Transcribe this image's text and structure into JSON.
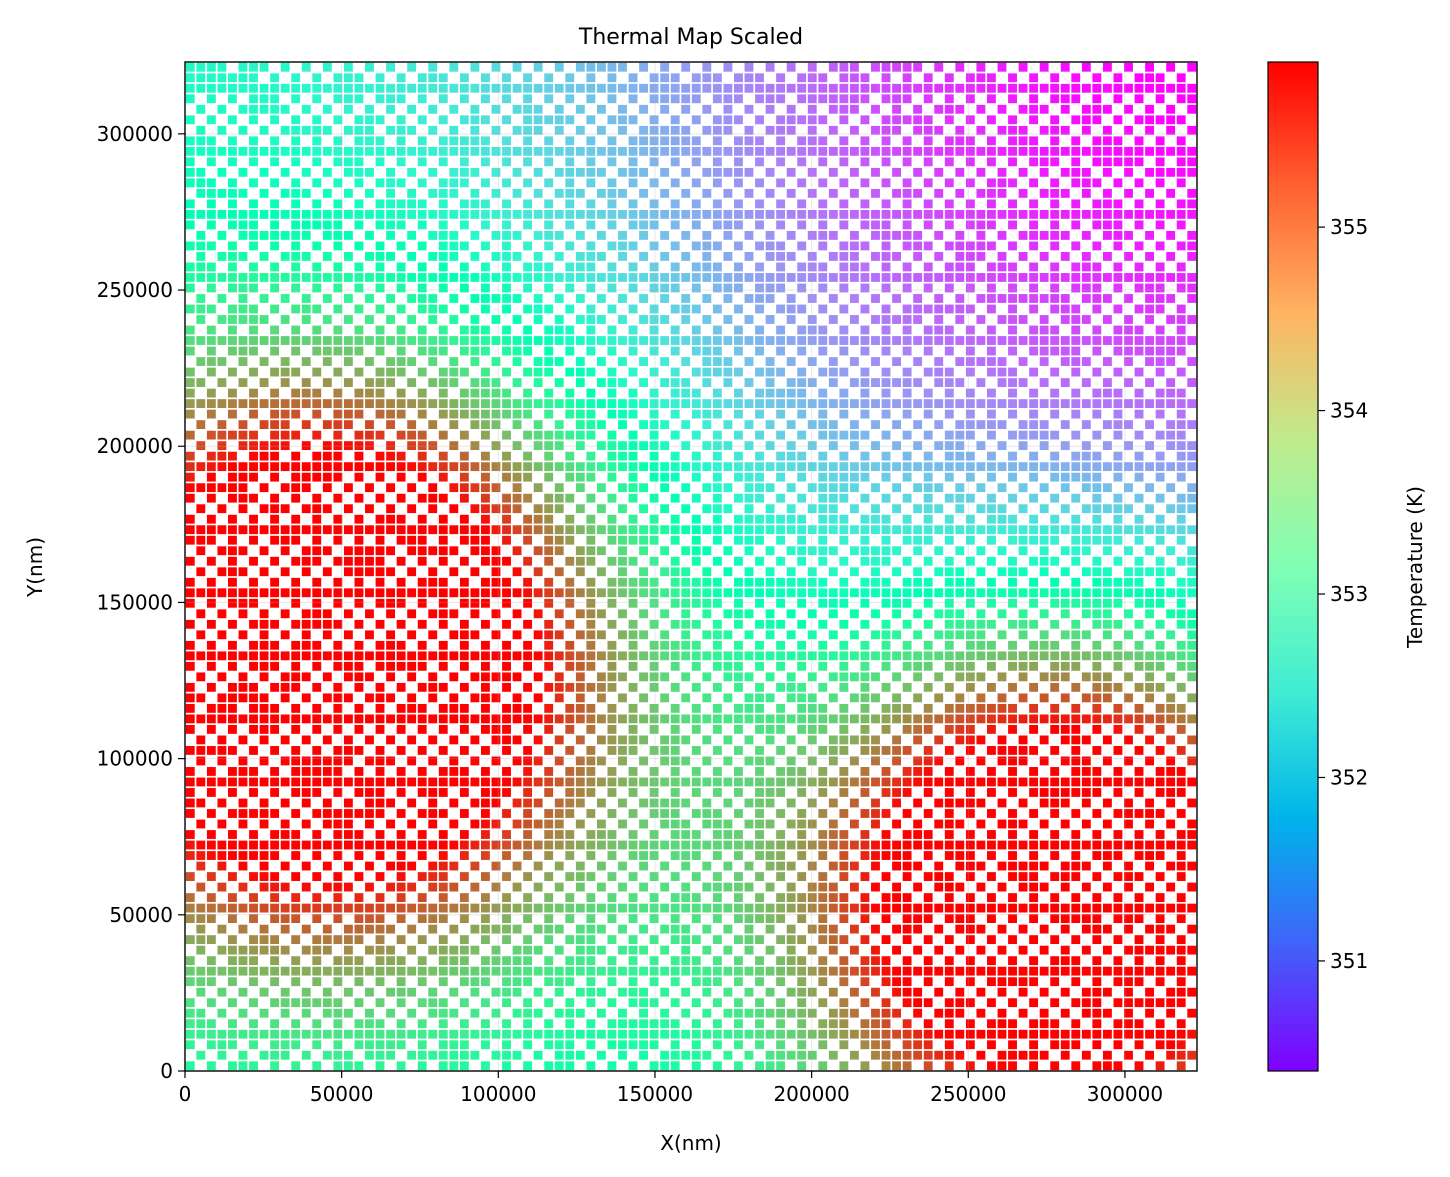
{
  "chart_data": {
    "type": "heatmap",
    "title": "Thermal Map Scaled",
    "xlabel": "X(nm)",
    "ylabel": "Y(nm)",
    "colorbar_label": "Temperature (K)",
    "xlim": [
      0,
      323000
    ],
    "ylim": [
      0,
      323000
    ],
    "xticks": [
      0,
      50000,
      100000,
      150000,
      200000,
      250000,
      300000
    ],
    "yticks": [
      0,
      50000,
      100000,
      150000,
      200000,
      250000,
      300000
    ],
    "color_range": [
      350.4,
      355.9
    ],
    "colorbar_ticks": [
      351,
      352,
      353,
      354,
      355
    ],
    "colormap": "rainbow",
    "grid": true,
    "grid_cells": {
      "nx": 96,
      "ny": 96,
      "cell_size_nm": 3364.6
    },
    "features": [
      {
        "kind": "hotspot",
        "x": 47000,
        "y": 132000,
        "peak": 355.9,
        "spread_nm": 65000
      },
      {
        "kind": "hotspot",
        "x": 281000,
        "y": 60000,
        "peak": 355.8,
        "spread_nm": 60000
      },
      {
        "kind": "background",
        "min": 350.4,
        "min_location": "top-right",
        "x": 323000,
        "y": 323000
      }
    ]
  }
}
